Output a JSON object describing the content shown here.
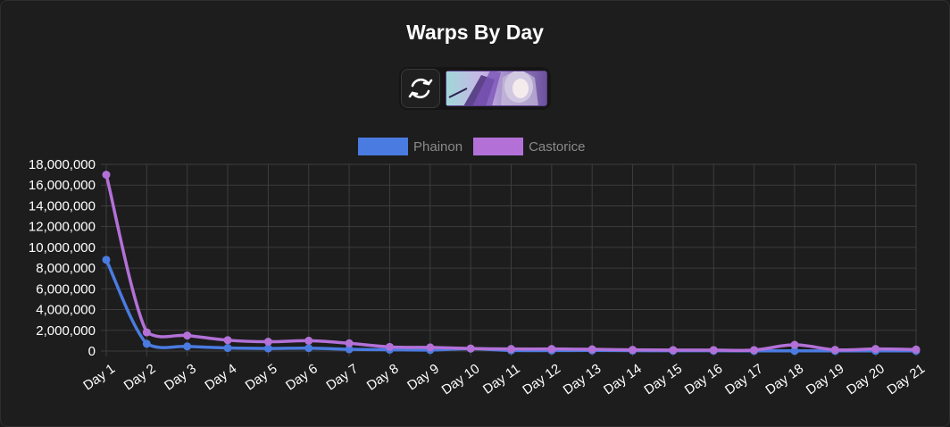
{
  "title": "Warps By Day",
  "controls": {
    "swap_icon": "refresh-cycle-icon",
    "banner": "character-banner-thumbnail"
  },
  "colors": {
    "background": "#1d1d1d",
    "grid": "#3d3d3d",
    "text": "#ffffff",
    "legend_text": "#8a8a8a"
  },
  "chart_data": {
    "type": "line",
    "title": "Warps By Day",
    "xlabel": "",
    "ylabel": "",
    "ylim": [
      0,
      18000000
    ],
    "y_ticks": [
      "0",
      "2,000,000",
      "4,000,000",
      "6,000,000",
      "8,000,000",
      "10,000,000",
      "12,000,000",
      "14,000,000",
      "16,000,000",
      "18,000,000"
    ],
    "grid": true,
    "legend_position": "top",
    "categories": [
      "Day 1",
      "Day 2",
      "Day 3",
      "Day 4",
      "Day 5",
      "Day 6",
      "Day 7",
      "Day 8",
      "Day 9",
      "Day 10",
      "Day 11",
      "Day 12",
      "Day 13",
      "Day 14",
      "Day 15",
      "Day 16",
      "Day 17",
      "Day 18",
      "Day 19",
      "Day 20",
      "Day 21"
    ],
    "series": [
      {
        "name": "Phainon",
        "color": "#4a7be0",
        "values": [
          8800000,
          700000,
          450000,
          300000,
          250000,
          280000,
          170000,
          130000,
          100000,
          230000,
          60000,
          50000,
          60000,
          40000,
          30000,
          30000,
          20000,
          20000,
          20000,
          20000,
          20000
        ]
      },
      {
        "name": "Castorice",
        "color": "#b371d8",
        "values": [
          17000000,
          1800000,
          1500000,
          1050000,
          900000,
          1000000,
          750000,
          400000,
          350000,
          250000,
          200000,
          200000,
          170000,
          120000,
          100000,
          100000,
          100000,
          600000,
          120000,
          200000,
          150000
        ]
      }
    ]
  }
}
